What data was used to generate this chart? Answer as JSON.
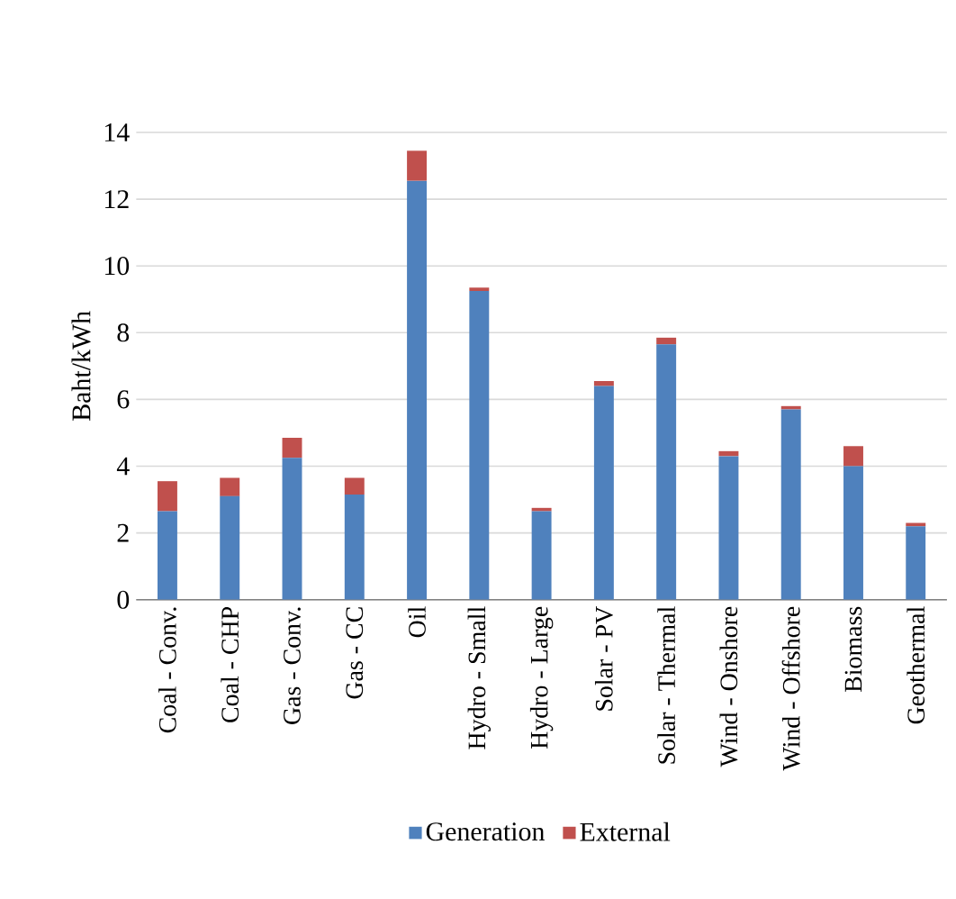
{
  "chart_data": {
    "type": "bar",
    "stacked": true,
    "ylabel": "Baht/kWh",
    "categories": [
      "Coal - Conv.",
      "Coal - CHP",
      "Gas - Conv.",
      "Gas - CC",
      "Oil",
      "Hydro - Small",
      "Hydro - Large",
      "Solar - PV",
      "Solar - Thermal",
      "Wind - Onshore",
      "Wind - Offshore",
      "Biomass",
      "Geothermal"
    ],
    "series": [
      {
        "name": "Generation",
        "color": "#4f81bd",
        "values": [
          2.65,
          3.1,
          4.25,
          3.15,
          12.55,
          9.25,
          2.65,
          6.4,
          7.65,
          4.3,
          5.7,
          4.0,
          2.2
        ]
      },
      {
        "name": "External",
        "color": "#c0504d",
        "values": [
          0.9,
          0.55,
          0.6,
          0.5,
          0.9,
          0.1,
          0.1,
          0.15,
          0.2,
          0.15,
          0.1,
          0.6,
          0.1
        ]
      }
    ],
    "ylim": [
      0,
      14
    ],
    "yticks": [
      0,
      2,
      4,
      6,
      8,
      10,
      12,
      14
    ],
    "grid": "y",
    "legend": "bottom"
  }
}
